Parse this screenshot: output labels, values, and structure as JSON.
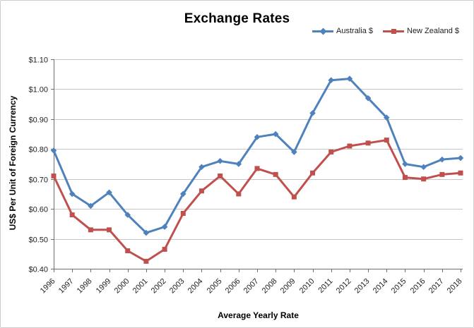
{
  "chart_data": {
    "type": "line",
    "title": "Exchange Rates",
    "xlabel": "Average Yearly Rate",
    "ylabel": "US$ Per Unit of Foreign Currency",
    "categories": [
      "1996",
      "1997",
      "1998",
      "1999",
      "2000",
      "2001",
      "2002",
      "2003",
      "2004",
      "2005",
      "2006",
      "2007",
      "2008",
      "2009",
      "2010",
      "2011",
      "2012",
      "2013",
      "2014",
      "2015",
      "2016",
      "2017",
      "2018"
    ],
    "series": [
      {
        "name": "Australia $",
        "color": "#4F81BD",
        "marker": "diamond",
        "values": [
          0.795,
          0.65,
          0.61,
          0.655,
          0.58,
          0.52,
          0.54,
          0.65,
          0.74,
          0.76,
          0.75,
          0.84,
          0.85,
          0.79,
          0.92,
          1.03,
          1.035,
          0.97,
          0.905,
          0.75,
          0.74,
          0.765,
          0.77
        ]
      },
      {
        "name": "New Zealand $",
        "color": "#C0504D",
        "marker": "square",
        "values": [
          0.71,
          0.58,
          0.53,
          0.53,
          0.46,
          0.425,
          0.465,
          0.585,
          0.66,
          0.71,
          0.65,
          0.735,
          0.715,
          0.64,
          0.72,
          0.79,
          0.81,
          0.82,
          0.83,
          0.705,
          0.7,
          0.715,
          0.72
        ]
      }
    ],
    "ylim": [
      0.4,
      1.1
    ],
    "y_tick_step": 0.1,
    "y_tick_labels": [
      "$0.40",
      "$0.50",
      "$0.60",
      "$0.70",
      "$0.80",
      "$0.90",
      "$1.00",
      "$1.10"
    ],
    "grid": "horizontal",
    "legend_position": "top-right",
    "colors": {
      "gridline": "#c6c6c6",
      "axis": "#6e6e6e",
      "tick_text": "#1f1f1f",
      "title_text": "#000000"
    }
  }
}
